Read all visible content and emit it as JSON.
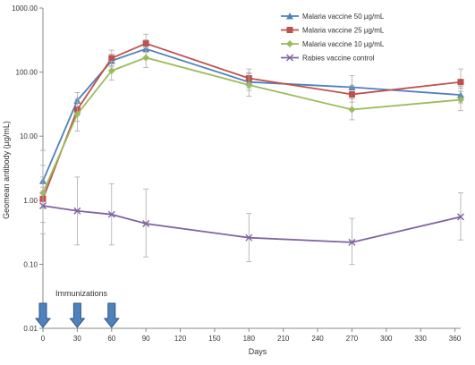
{
  "chart_data": {
    "type": "line",
    "title": "",
    "xlabel": "Days",
    "ylabel": "Geomean antibody (µg/mL)",
    "x_ticks": [
      0,
      30,
      60,
      90,
      120,
      150,
      180,
      210,
      240,
      270,
      300,
      330,
      360
    ],
    "xlim": [
      0,
      365
    ],
    "y_scale": "log",
    "ylim": [
      0.01,
      1000
    ],
    "y_ticks": [
      0.01,
      0.1,
      1,
      10,
      100,
      1000
    ],
    "y_tick_labels": [
      "0.01",
      "0.10",
      "1.00",
      "10.00",
      "100.00",
      "1000.00"
    ],
    "grid": false,
    "legend_position": "top-right",
    "annotation": "Immunizations",
    "immunization_days": [
      0,
      30,
      60
    ],
    "series": [
      {
        "name": "Malaria vaccine 50 µg/mL",
        "color": "#4f81bd",
        "marker": "triangle",
        "x": [
          0,
          30,
          60,
          90,
          180,
          270,
          365
        ],
        "y": [
          2.0,
          36,
          150,
          230,
          70,
          58,
          44
        ],
        "err_low": [
          1.1,
          26,
          120,
          165,
          52,
          40,
          33
        ],
        "err_high": [
          3.5,
          48,
          190,
          320,
          98,
          88,
          60
        ]
      },
      {
        "name": "Malaria vaccine 25 µg/mL",
        "color": "#c0504d",
        "marker": "square",
        "x": [
          0,
          30,
          60,
          90,
          180,
          270,
          365
        ],
        "y": [
          1.05,
          26,
          165,
          280,
          80,
          45,
          70
        ],
        "err_low": [
          0.75,
          17,
          125,
          205,
          57,
          34,
          50
        ],
        "err_high": [
          1.6,
          38,
          220,
          390,
          112,
          62,
          112
        ]
      },
      {
        "name": "Malaria vaccine 10 µg/mL",
        "color": "#9bbb59",
        "marker": "diamond",
        "x": [
          0,
          30,
          60,
          90,
          180,
          270,
          365
        ],
        "y": [
          1.3,
          22,
          105,
          168,
          63,
          26,
          37
        ],
        "err_low": [
          0.45,
          12,
          75,
          118,
          42,
          18,
          25
        ],
        "err_high": [
          6.0,
          34,
          148,
          240,
          95,
          38,
          56
        ]
      },
      {
        "name": "Rabies vaccine control",
        "color": "#8064a2",
        "marker": "x",
        "x": [
          0,
          30,
          60,
          90,
          180,
          270,
          365
        ],
        "y": [
          0.82,
          0.68,
          0.6,
          0.43,
          0.26,
          0.22,
          0.55
        ],
        "err_low": [
          0.3,
          0.2,
          0.2,
          0.13,
          0.11,
          0.1,
          0.24
        ],
        "err_high": [
          2.3,
          2.3,
          1.8,
          1.5,
          0.62,
          0.52,
          1.3
        ]
      }
    ]
  }
}
